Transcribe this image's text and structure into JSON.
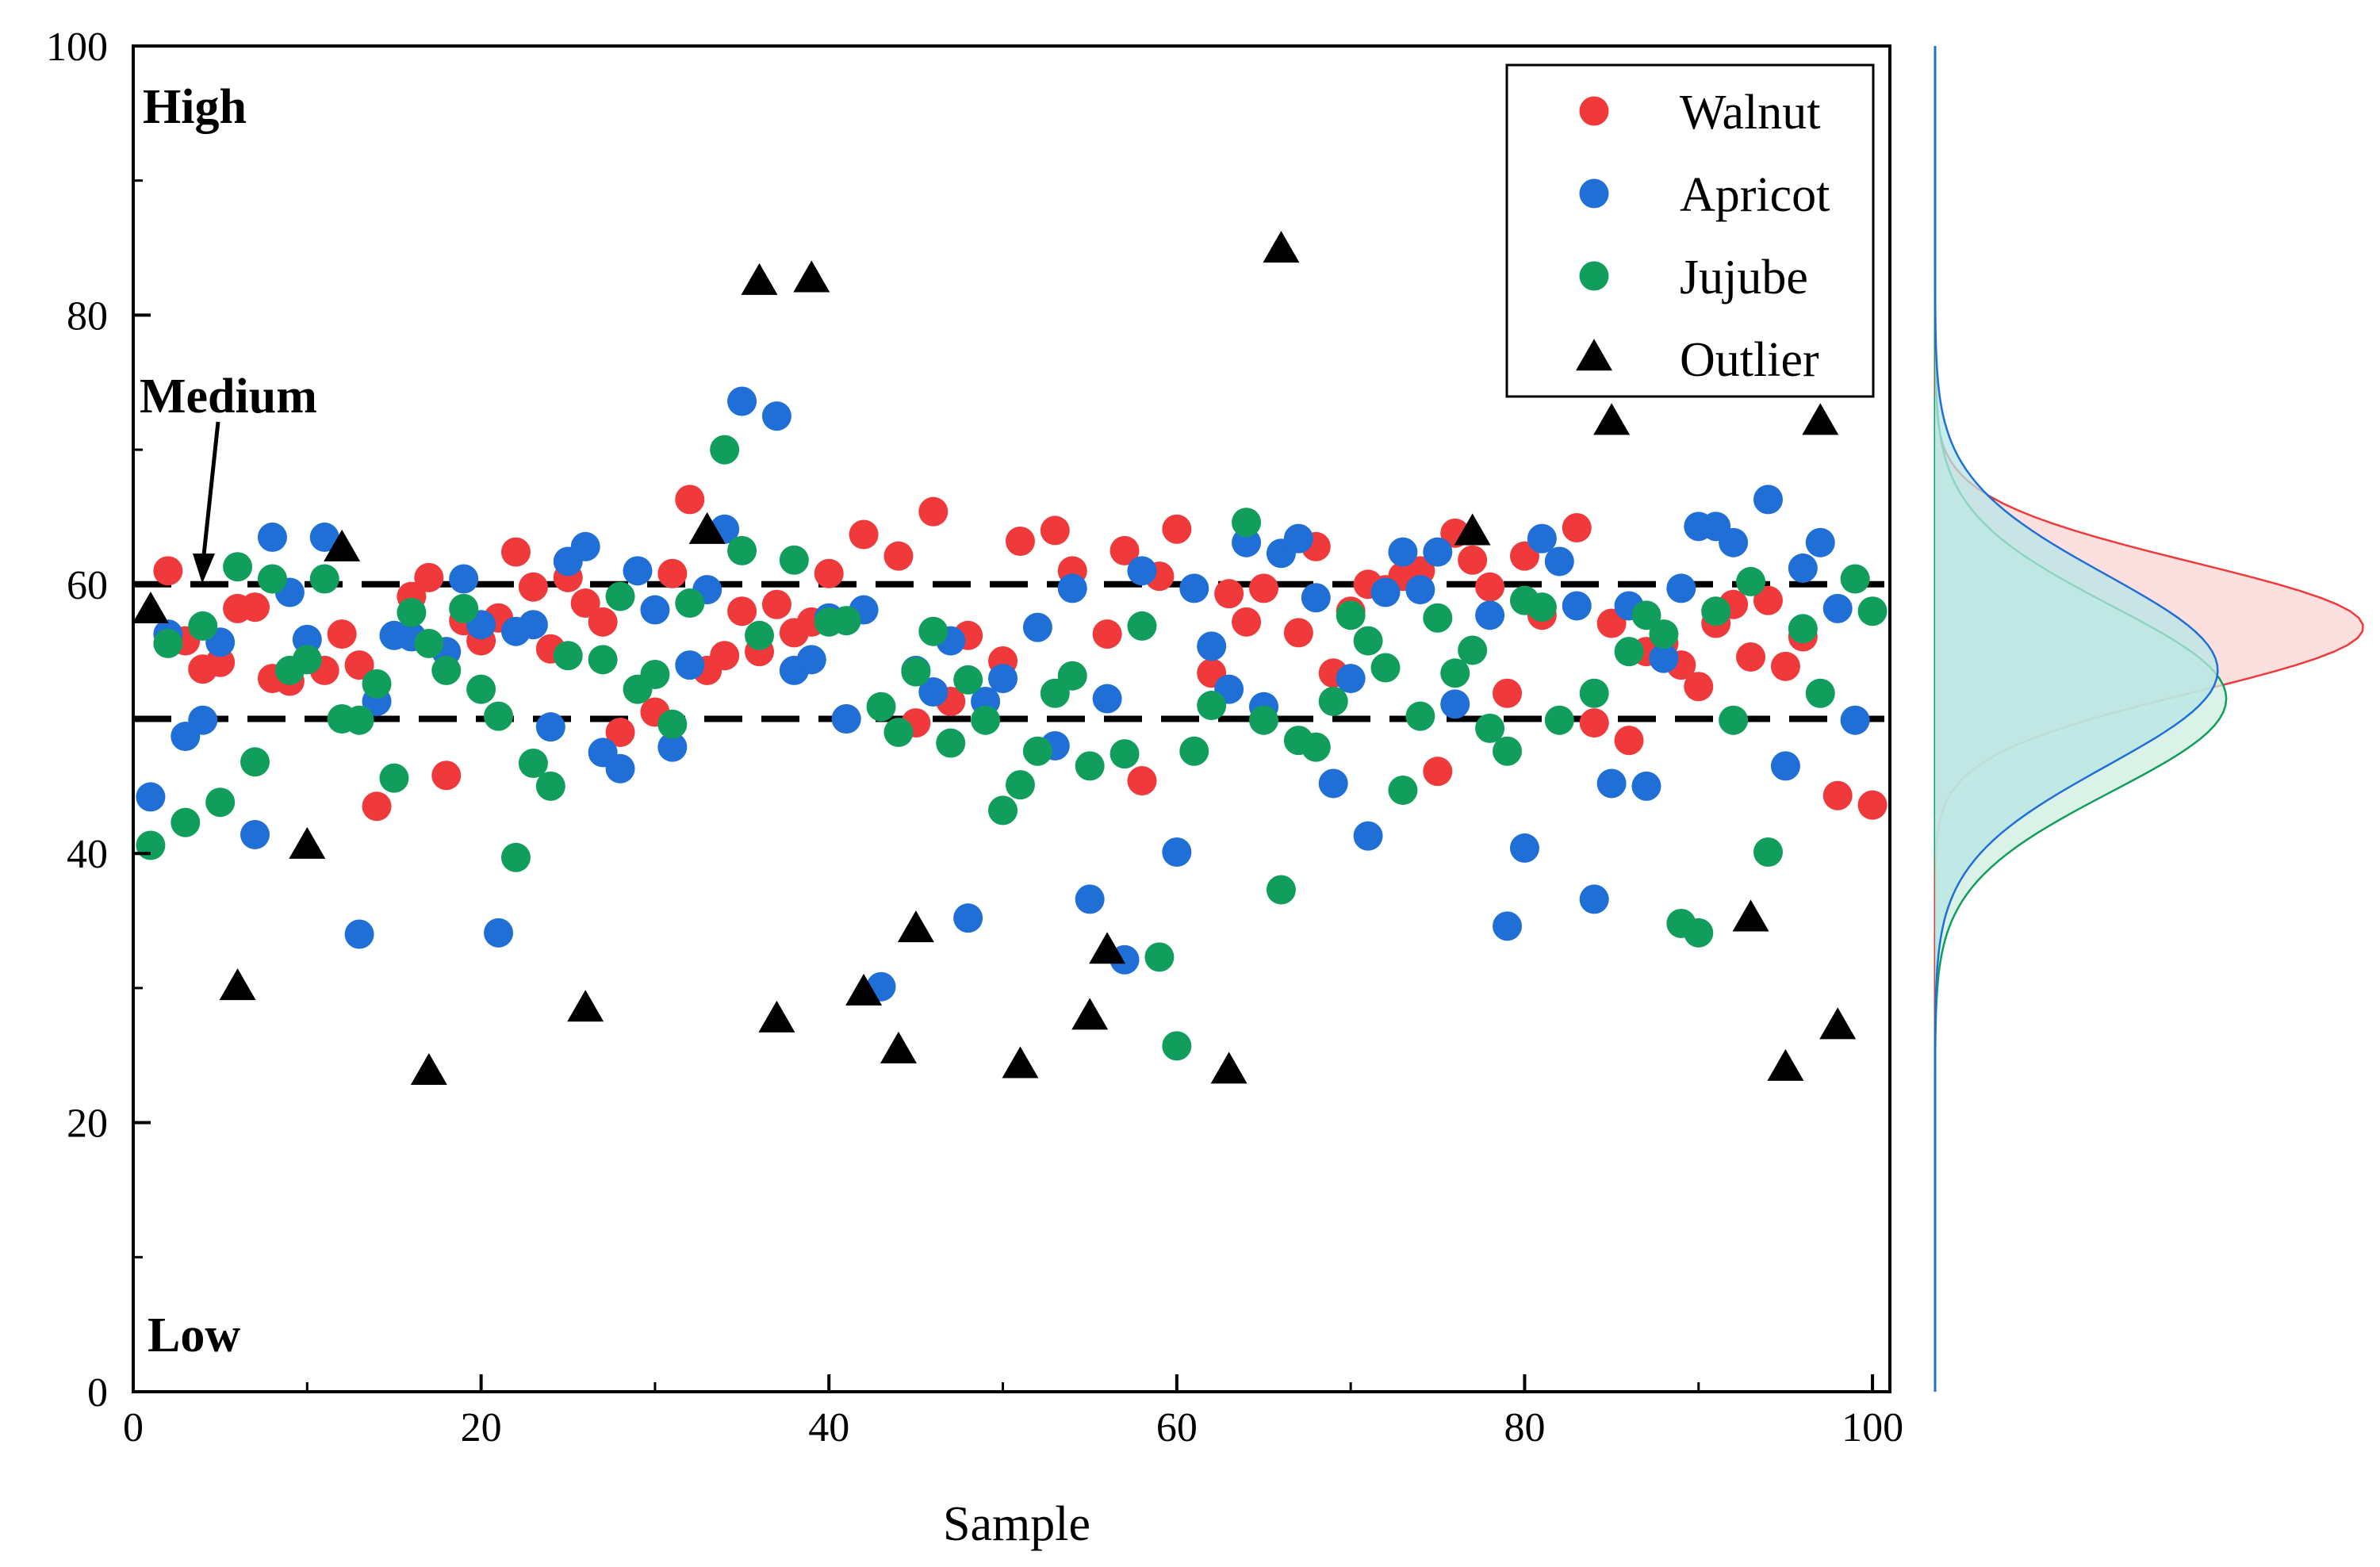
{
  "chart_data": {
    "type": "scatter",
    "xlabel": "Sample",
    "ylabel": "",
    "xlim": [
      0,
      101
    ],
    "ylim": [
      0,
      100
    ],
    "x_ticks": [
      0,
      20,
      40,
      60,
      80,
      100
    ],
    "y_ticks": [
      0,
      20,
      40,
      60,
      80,
      100
    ],
    "thresholds": [
      60,
      50
    ],
    "zone_labels": {
      "high": "High",
      "medium": "Medium",
      "low": "Low"
    },
    "legend": {
      "position": "top-right",
      "entries": [
        "Walnut",
        "Apricot",
        "Jujube",
        "Outlier"
      ]
    },
    "series": [
      {
        "name": "Walnut",
        "color": "#f0393b",
        "marker": "circle",
        "values": [
          [
            2,
            61.0
          ],
          [
            3,
            55.8
          ],
          [
            4,
            53.7
          ],
          [
            5,
            54.2
          ],
          [
            6,
            58.2
          ],
          [
            7,
            58.3
          ],
          [
            8,
            53.0
          ],
          [
            9,
            52.8
          ],
          [
            11,
            53.6
          ],
          [
            12,
            56.3
          ],
          [
            13,
            54.0
          ],
          [
            14,
            43.5
          ],
          [
            16,
            59.1
          ],
          [
            17,
            60.5
          ],
          [
            18,
            45.8
          ],
          [
            19,
            57.3
          ],
          [
            20,
            55.8
          ],
          [
            21,
            57.5
          ],
          [
            22,
            62.4
          ],
          [
            23,
            59.8
          ],
          [
            24,
            55.2
          ],
          [
            25,
            60.5
          ],
          [
            26,
            58.6
          ],
          [
            27,
            57.2
          ],
          [
            28,
            49.0
          ],
          [
            30,
            50.5
          ],
          [
            31,
            60.8
          ],
          [
            32,
            66.3
          ],
          [
            33,
            53.6
          ],
          [
            34,
            54.7
          ],
          [
            35,
            58.0
          ],
          [
            36,
            55.0
          ],
          [
            37,
            58.5
          ],
          [
            38,
            56.4
          ],
          [
            39,
            57.2
          ],
          [
            40,
            60.8
          ],
          [
            41,
            50.0
          ],
          [
            42,
            63.7
          ],
          [
            44,
            62.1
          ],
          [
            45,
            49.7
          ],
          [
            46,
            65.4
          ],
          [
            47,
            51.3
          ],
          [
            48,
            56.2
          ],
          [
            50,
            54.3
          ],
          [
            51,
            63.2
          ],
          [
            53,
            64.0
          ],
          [
            54,
            61.0
          ],
          [
            56,
            56.3
          ],
          [
            57,
            62.5
          ],
          [
            58,
            45.4
          ],
          [
            59,
            60.6
          ],
          [
            60,
            64.1
          ],
          [
            62,
            53.4
          ],
          [
            63,
            59.3
          ],
          [
            64,
            57.2
          ],
          [
            65,
            59.7
          ],
          [
            67,
            56.4
          ],
          [
            68,
            62.8
          ],
          [
            69,
            53.4
          ],
          [
            70,
            58.0
          ],
          [
            71,
            60.0
          ],
          [
            72,
            59.6
          ],
          [
            73,
            60.6
          ],
          [
            74,
            61.0
          ],
          [
            75,
            46.1
          ],
          [
            76,
            63.8
          ],
          [
            77,
            61.8
          ],
          [
            78,
            59.8
          ],
          [
            79,
            51.9
          ],
          [
            80,
            62.1
          ],
          [
            81,
            57.7
          ],
          [
            83,
            64.2
          ],
          [
            84,
            49.7
          ],
          [
            85,
            57.1
          ],
          [
            86,
            48.4
          ],
          [
            87,
            55.0
          ],
          [
            88,
            55.6
          ],
          [
            89,
            54.0
          ],
          [
            90,
            52.4
          ],
          [
            91,
            57.1
          ],
          [
            92,
            58.5
          ],
          [
            93,
            54.6
          ],
          [
            94,
            58.8
          ],
          [
            95,
            53.9
          ],
          [
            96,
            56.1
          ],
          [
            98,
            44.3
          ],
          [
            100,
            43.6
          ]
        ]
      },
      {
        "name": "Apricot",
        "color": "#1f6fd6",
        "marker": "circle",
        "values": [
          [
            1,
            44.2
          ],
          [
            2,
            56.3
          ],
          [
            3,
            48.7
          ],
          [
            4,
            49.9
          ],
          [
            5,
            55.7
          ],
          [
            7,
            41.4
          ],
          [
            8,
            63.5
          ],
          [
            9,
            59.4
          ],
          [
            10,
            55.9
          ],
          [
            11,
            63.5
          ],
          [
            13,
            34.0
          ],
          [
            14,
            51.3
          ],
          [
            15,
            56.2
          ],
          [
            16,
            56.1
          ],
          [
            18,
            55.0
          ],
          [
            19,
            60.4
          ],
          [
            20,
            57.0
          ],
          [
            21,
            34.1
          ],
          [
            22,
            56.5
          ],
          [
            23,
            57.0
          ],
          [
            24,
            49.4
          ],
          [
            25,
            61.7
          ],
          [
            26,
            62.8
          ],
          [
            27,
            47.5
          ],
          [
            28,
            46.3
          ],
          [
            29,
            61.0
          ],
          [
            30,
            58.1
          ],
          [
            31,
            47.9
          ],
          [
            32,
            54.0
          ],
          [
            33,
            59.6
          ],
          [
            34,
            64.1
          ],
          [
            35,
            73.6
          ],
          [
            37,
            72.5
          ],
          [
            38,
            53.6
          ],
          [
            39,
            54.4
          ],
          [
            40,
            57.5
          ],
          [
            41,
            50.0
          ],
          [
            42,
            58.1
          ],
          [
            43,
            30.1
          ],
          [
            45,
            53.6
          ],
          [
            46,
            52.0
          ],
          [
            47,
            55.8
          ],
          [
            48,
            35.2
          ],
          [
            49,
            51.3
          ],
          [
            50,
            53.0
          ],
          [
            52,
            56.8
          ],
          [
            53,
            48.0
          ],
          [
            54,
            59.7
          ],
          [
            55,
            36.6
          ],
          [
            56,
            51.5
          ],
          [
            57,
            32.1
          ],
          [
            58,
            61.0
          ],
          [
            60,
            40.1
          ],
          [
            61,
            59.7
          ],
          [
            62,
            55.4
          ],
          [
            63,
            52.2
          ],
          [
            64,
            63.1
          ],
          [
            65,
            50.9
          ],
          [
            66,
            62.3
          ],
          [
            67,
            63.4
          ],
          [
            68,
            59.0
          ],
          [
            69,
            45.2
          ],
          [
            70,
            53.0
          ],
          [
            71,
            41.3
          ],
          [
            72,
            59.4
          ],
          [
            73,
            62.4
          ],
          [
            74,
            59.6
          ],
          [
            75,
            62.4
          ],
          [
            76,
            51.1
          ],
          [
            78,
            57.7
          ],
          [
            79,
            34.6
          ],
          [
            80,
            40.4
          ],
          [
            81,
            63.4
          ],
          [
            82,
            61.7
          ],
          [
            83,
            58.4
          ],
          [
            84,
            36.6
          ],
          [
            85,
            45.2
          ],
          [
            86,
            58.4
          ],
          [
            87,
            45.0
          ],
          [
            88,
            54.5
          ],
          [
            89,
            59.7
          ],
          [
            90,
            64.3
          ],
          [
            91,
            64.3
          ],
          [
            92,
            63.1
          ],
          [
            94,
            66.3
          ],
          [
            95,
            46.5
          ],
          [
            96,
            61.2
          ],
          [
            97,
            63.1
          ],
          [
            98,
            58.2
          ],
          [
            99,
            49.9
          ]
        ]
      },
      {
        "name": "Jujube",
        "color": "#119e5c",
        "marker": "circle",
        "values": [
          [
            1,
            40.6
          ],
          [
            2,
            55.6
          ],
          [
            3,
            42.3
          ],
          [
            4,
            56.9
          ],
          [
            5,
            43.8
          ],
          [
            6,
            61.3
          ],
          [
            7,
            46.8
          ],
          [
            8,
            60.4
          ],
          [
            9,
            53.6
          ],
          [
            10,
            54.4
          ],
          [
            11,
            60.4
          ],
          [
            12,
            50.0
          ],
          [
            13,
            49.9
          ],
          [
            14,
            52.6
          ],
          [
            15,
            45.6
          ],
          [
            16,
            57.9
          ],
          [
            17,
            55.6
          ],
          [
            18,
            53.6
          ],
          [
            19,
            58.2
          ],
          [
            20,
            52.2
          ],
          [
            21,
            50.2
          ],
          [
            22,
            39.7
          ],
          [
            23,
            46.7
          ],
          [
            24,
            45.0
          ],
          [
            25,
            54.7
          ],
          [
            27,
            54.4
          ],
          [
            28,
            59.1
          ],
          [
            29,
            52.2
          ],
          [
            30,
            53.3
          ],
          [
            31,
            49.6
          ],
          [
            32,
            58.6
          ],
          [
            34,
            70.0
          ],
          [
            35,
            62.5
          ],
          [
            36,
            56.2
          ],
          [
            38,
            61.8
          ],
          [
            40,
            57.2
          ],
          [
            41,
            57.3
          ],
          [
            43,
            50.9
          ],
          [
            44,
            49.0
          ],
          [
            45,
            53.5
          ],
          [
            46,
            56.5
          ],
          [
            47,
            48.2
          ],
          [
            48,
            52.9
          ],
          [
            49,
            49.9
          ],
          [
            50,
            43.2
          ],
          [
            51,
            45.1
          ],
          [
            52,
            47.6
          ],
          [
            53,
            51.9
          ],
          [
            54,
            53.2
          ],
          [
            55,
            46.5
          ],
          [
            57,
            47.4
          ],
          [
            58,
            56.9
          ],
          [
            59,
            32.3
          ],
          [
            60,
            25.7
          ],
          [
            61,
            47.6
          ],
          [
            62,
            51.0
          ],
          [
            64,
            64.6
          ],
          [
            65,
            49.9
          ],
          [
            66,
            37.3
          ],
          [
            67,
            48.4
          ],
          [
            68,
            47.9
          ],
          [
            69,
            51.3
          ],
          [
            70,
            57.7
          ],
          [
            71,
            55.8
          ],
          [
            72,
            53.8
          ],
          [
            73,
            44.7
          ],
          [
            74,
            50.2
          ],
          [
            75,
            57.5
          ],
          [
            76,
            53.4
          ],
          [
            77,
            55.1
          ],
          [
            78,
            49.3
          ],
          [
            79,
            47.6
          ],
          [
            80,
            58.8
          ],
          [
            81,
            58.3
          ],
          [
            82,
            49.9
          ],
          [
            84,
            51.9
          ],
          [
            86,
            55.0
          ],
          [
            87,
            57.7
          ],
          [
            88,
            56.3
          ],
          [
            89,
            34.8
          ],
          [
            90,
            34.1
          ],
          [
            91,
            58.0
          ],
          [
            92,
            49.9
          ],
          [
            93,
            60.2
          ],
          [
            94,
            40.1
          ],
          [
            96,
            56.7
          ],
          [
            97,
            51.9
          ],
          [
            99,
            60.4
          ],
          [
            100,
            58.0
          ]
        ]
      },
      {
        "name": "Outlier",
        "color": "#000000",
        "marker": "triangle",
        "values": [
          [
            1,
            58.0
          ],
          [
            6,
            30.0
          ],
          [
            10,
            40.5
          ],
          [
            12,
            62.6
          ],
          [
            17,
            23.7
          ],
          [
            26,
            28.4
          ],
          [
            33,
            63.9
          ],
          [
            36,
            82.4
          ],
          [
            37,
            27.6
          ],
          [
            39,
            82.6
          ],
          [
            42,
            29.6
          ],
          [
            44,
            25.3
          ],
          [
            45,
            34.3
          ],
          [
            51,
            24.2
          ],
          [
            55,
            27.8
          ],
          [
            56,
            32.7
          ],
          [
            63,
            23.8
          ],
          [
            66,
            84.8
          ],
          [
            77,
            63.8
          ],
          [
            85,
            72.0
          ],
          [
            93,
            35.1
          ],
          [
            95,
            24.0
          ],
          [
            97,
            72.0
          ],
          [
            98,
            27.1
          ]
        ]
      }
    ],
    "density": {
      "orientation": "vertical",
      "series": [
        {
          "name": "Walnut",
          "mean": 56.8,
          "sd": 4.8,
          "color": "#f0393b",
          "fill": "#fbd5d5",
          "peak": 1.0
        },
        {
          "name": "Apricot",
          "mean": 53.6,
          "sd": 7.1,
          "color": "#1f6fd6",
          "fill": "#b7e6e6",
          "peak": 0.66
        },
        {
          "name": "Jujube",
          "mean": 51.5,
          "sd": 6.9,
          "color": "#119e5c",
          "fill": "#cfeee0",
          "peak": 0.68
        }
      ]
    }
  }
}
